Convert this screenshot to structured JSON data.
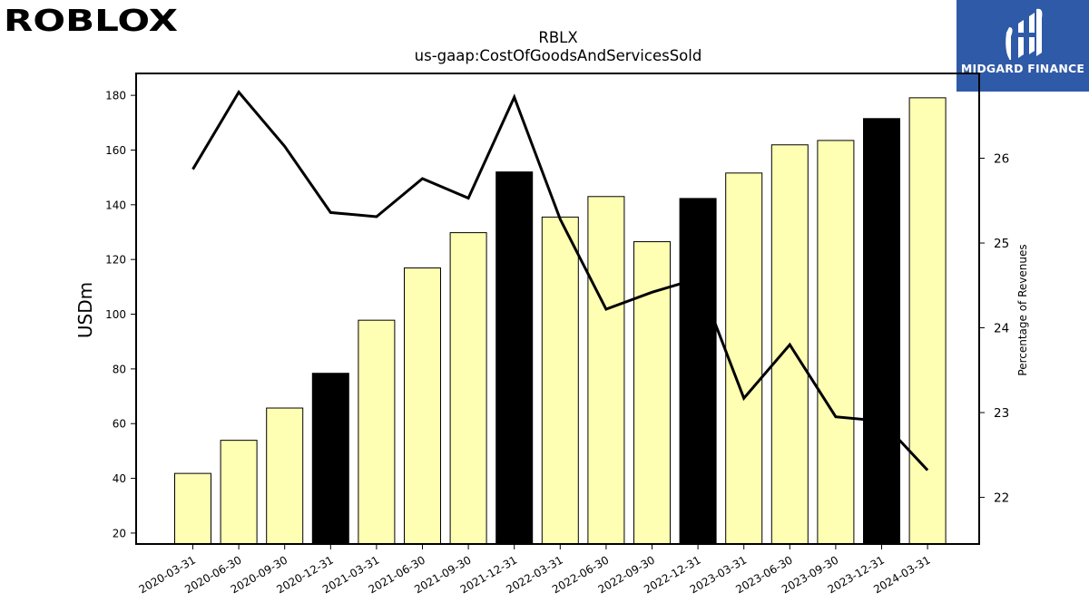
{
  "branding": {
    "left_logo_text": "ROBLOX",
    "right_logo_text": "MIDGARD FINANCE",
    "brand_blue": "#2f5aa8"
  },
  "chart_data": {
    "type": "bar",
    "title": "RBLX",
    "subtitle": "us-gaap:CostOfGoodsAndServicesSold",
    "ylabel": "USDm",
    "y2label": "Percentage of Revenues",
    "ylim": [
      16,
      188
    ],
    "y2lim": [
      21.45,
      27.0
    ],
    "yticks": [
      20,
      40,
      60,
      80,
      100,
      120,
      140,
      160,
      180
    ],
    "y2ticks": [
      22,
      23,
      24,
      25,
      26
    ],
    "categories": [
      "2020-03-31",
      "2020-06-30",
      "2020-09-30",
      "2020-12-31",
      "2021-03-31",
      "2021-06-30",
      "2021-09-30",
      "2021-12-31",
      "2022-03-31",
      "2022-06-30",
      "2022-09-30",
      "2022-12-31",
      "2023-03-31",
      "2023-06-30",
      "2023-09-30",
      "2023-12-31",
      "2024-03-31"
    ],
    "series": [
      {
        "kind": "bar",
        "axis": "left",
        "values": [
          41.8,
          53.9,
          65.7,
          78.4,
          97.8,
          116.9,
          129.8,
          152.0,
          135.5,
          143.0,
          126.5,
          142.3,
          151.6,
          161.9,
          163.5,
          171.5,
          179.1
        ],
        "colors": [
          "#ffffb3",
          "#ffffb3",
          "#ffffb3",
          "#000000",
          "#ffffb3",
          "#ffffb3",
          "#ffffb3",
          "#000000",
          "#ffffb3",
          "#ffffb3",
          "#ffffb3",
          "#000000",
          "#ffffb3",
          "#ffffb3",
          "#ffffb3",
          "#000000",
          "#ffffb3"
        ]
      },
      {
        "kind": "line",
        "axis": "right",
        "color": "#000000",
        "values": [
          25.87,
          26.78,
          26.14,
          25.36,
          25.31,
          25.76,
          25.53,
          26.72,
          25.28,
          24.22,
          24.42,
          24.58,
          23.17,
          23.8,
          22.95,
          22.9,
          22.32
        ]
      }
    ]
  }
}
